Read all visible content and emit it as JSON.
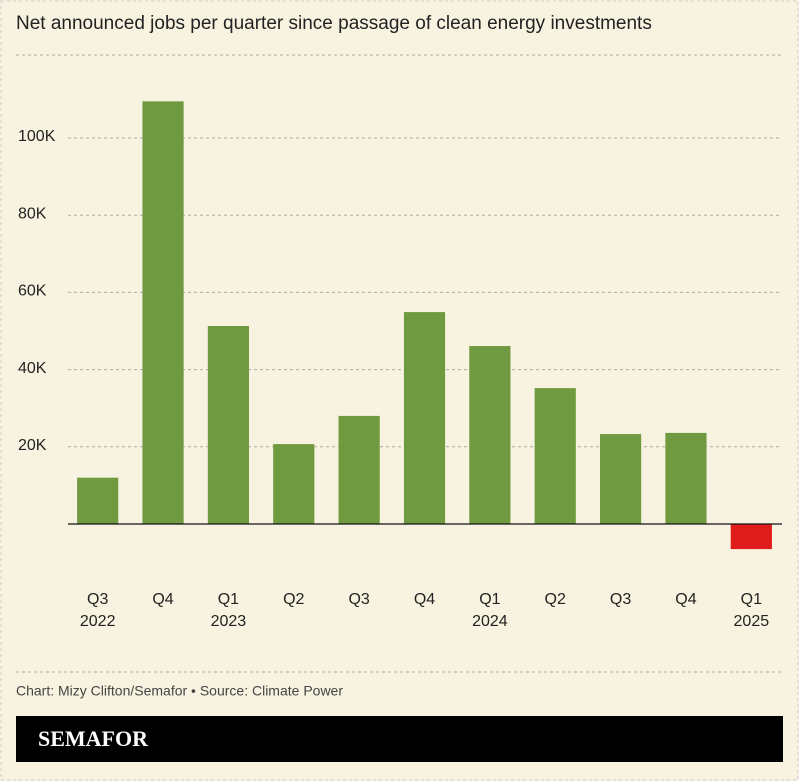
{
  "chart_data": {
    "type": "bar",
    "title": "Net announced jobs per quarter since passage of clean energy investments",
    "categories": [
      "Q3",
      "Q4",
      "Q1",
      "Q2",
      "Q3",
      "Q4",
      "Q1",
      "Q2",
      "Q3",
      "Q4",
      "Q1"
    ],
    "year_labels": [
      "2022",
      null,
      "2023",
      null,
      null,
      null,
      "2024",
      null,
      null,
      null,
      "2025"
    ],
    "values": [
      12000,
      109500,
      51300,
      20700,
      28000,
      54900,
      46100,
      35200,
      23300,
      23600,
      -6500
    ],
    "color": "#6f9a3f",
    "negative_color": "#e01b1b",
    "ylim": [
      -10000,
      115000
    ],
    "yticks": [
      {
        "value": 20000,
        "label": "20K"
      },
      {
        "value": 40000,
        "label": "40K"
      },
      {
        "value": 60000,
        "label": "60K"
      },
      {
        "value": 80000,
        "label": "80K"
      },
      {
        "value": 100000,
        "label": "100K"
      }
    ],
    "grid": true,
    "source": "Chart: Mizy Clifton/Semafor • Source: Climate Power",
    "brand": "SEMAFOR"
  }
}
